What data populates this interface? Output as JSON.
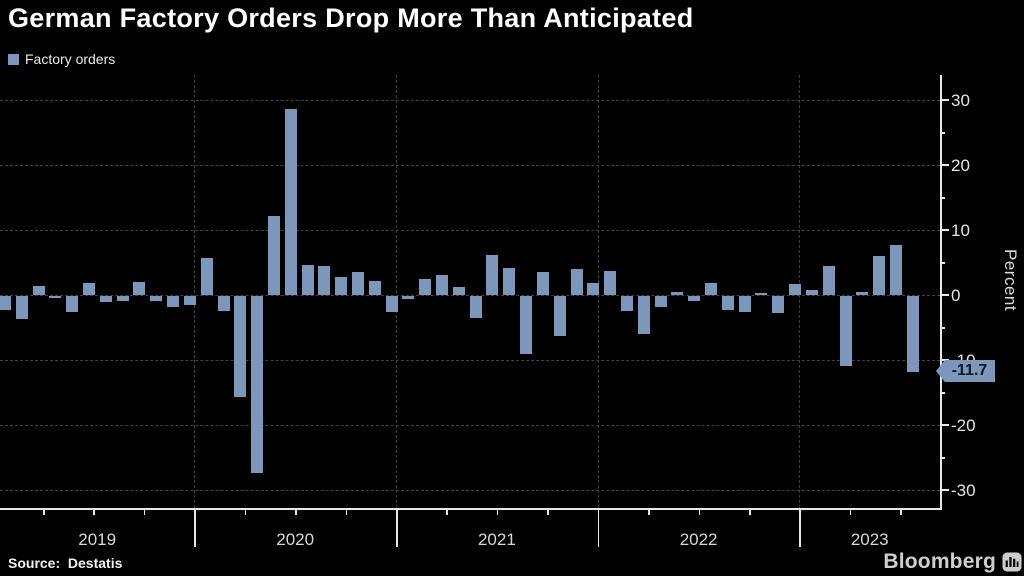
{
  "title": "German Factory Orders Drop More Than Anticipated",
  "legend": {
    "label": "Factory orders",
    "swatch_color": "#7d97bb"
  },
  "axis": {
    "y_label": "Percent",
    "y_ticks": [
      30,
      20,
      10,
      0,
      -10,
      -20,
      -30
    ],
    "y_minor_ticks": [
      25,
      15,
      5,
      -5,
      -15,
      -25
    ]
  },
  "callout": {
    "value": "-11.7",
    "bg_color": "#7d97bb",
    "text_color": "#0d1826"
  },
  "source": {
    "prefix": "Source:",
    "name": "Destatis"
  },
  "branding": {
    "wordmark": "Bloomberg",
    "icon": "bloomberg-terminal-icon"
  },
  "chart_data": {
    "type": "bar",
    "title": "German Factory Orders Drop More Than Anticipated",
    "series_name": "Factory orders",
    "unit": "percent, month-over-month change",
    "ylabel": "Percent",
    "ylim": [
      -33,
      34
    ],
    "grid": "dashed horizontal every 10, dashed vertical at year boundaries",
    "legend_position": "top-left",
    "bar_color": "#7d97bb",
    "x_year_labels": [
      "2019",
      "2020",
      "2021",
      "2022",
      "2023"
    ],
    "x": [
      "2019-01",
      "2019-02",
      "2019-03",
      "2019-04",
      "2019-05",
      "2019-06",
      "2019-07",
      "2019-08",
      "2019-09",
      "2019-10",
      "2019-11",
      "2019-12",
      "2020-01",
      "2020-02",
      "2020-03",
      "2020-04",
      "2020-05",
      "2020-06",
      "2020-07",
      "2020-08",
      "2020-09",
      "2020-10",
      "2020-11",
      "2020-12",
      "2021-01",
      "2021-02",
      "2021-03",
      "2021-04",
      "2021-05",
      "2021-06",
      "2021-07",
      "2021-08",
      "2021-09",
      "2021-10",
      "2021-11",
      "2021-12",
      "2022-01",
      "2022-02",
      "2022-03",
      "2022-04",
      "2022-05",
      "2022-06",
      "2022-07",
      "2022-08",
      "2022-09",
      "2022-10",
      "2022-11",
      "2022-12",
      "2023-01",
      "2023-02",
      "2023-03",
      "2023-04",
      "2023-05",
      "2023-06",
      "2023-07"
    ],
    "values": [
      -2.2,
      -3.6,
      1.4,
      -0.3,
      -2.4,
      1.9,
      -0.9,
      -0.8,
      2.0,
      -0.7,
      -1.7,
      -1.4,
      5.7,
      -2.3,
      -15.6,
      -27.2,
      12.2,
      28.6,
      4.6,
      4.5,
      2.8,
      3.6,
      2.2,
      -2.5,
      -0.5,
      2.5,
      3.1,
      1.3,
      -3.4,
      6.2,
      4.2,
      -8.9,
      3.6,
      -6.2,
      4.0,
      1.8,
      3.7,
      -2.3,
      -5.8,
      -1.7,
      0.5,
      -0.7,
      1.9,
      -2.2,
      -2.5,
      0.3,
      -2.6,
      1.7,
      0.7,
      4.4,
      -10.8,
      0.4,
      6.0,
      7.7,
      -11.7
    ],
    "last_point_label": "-11.7"
  }
}
